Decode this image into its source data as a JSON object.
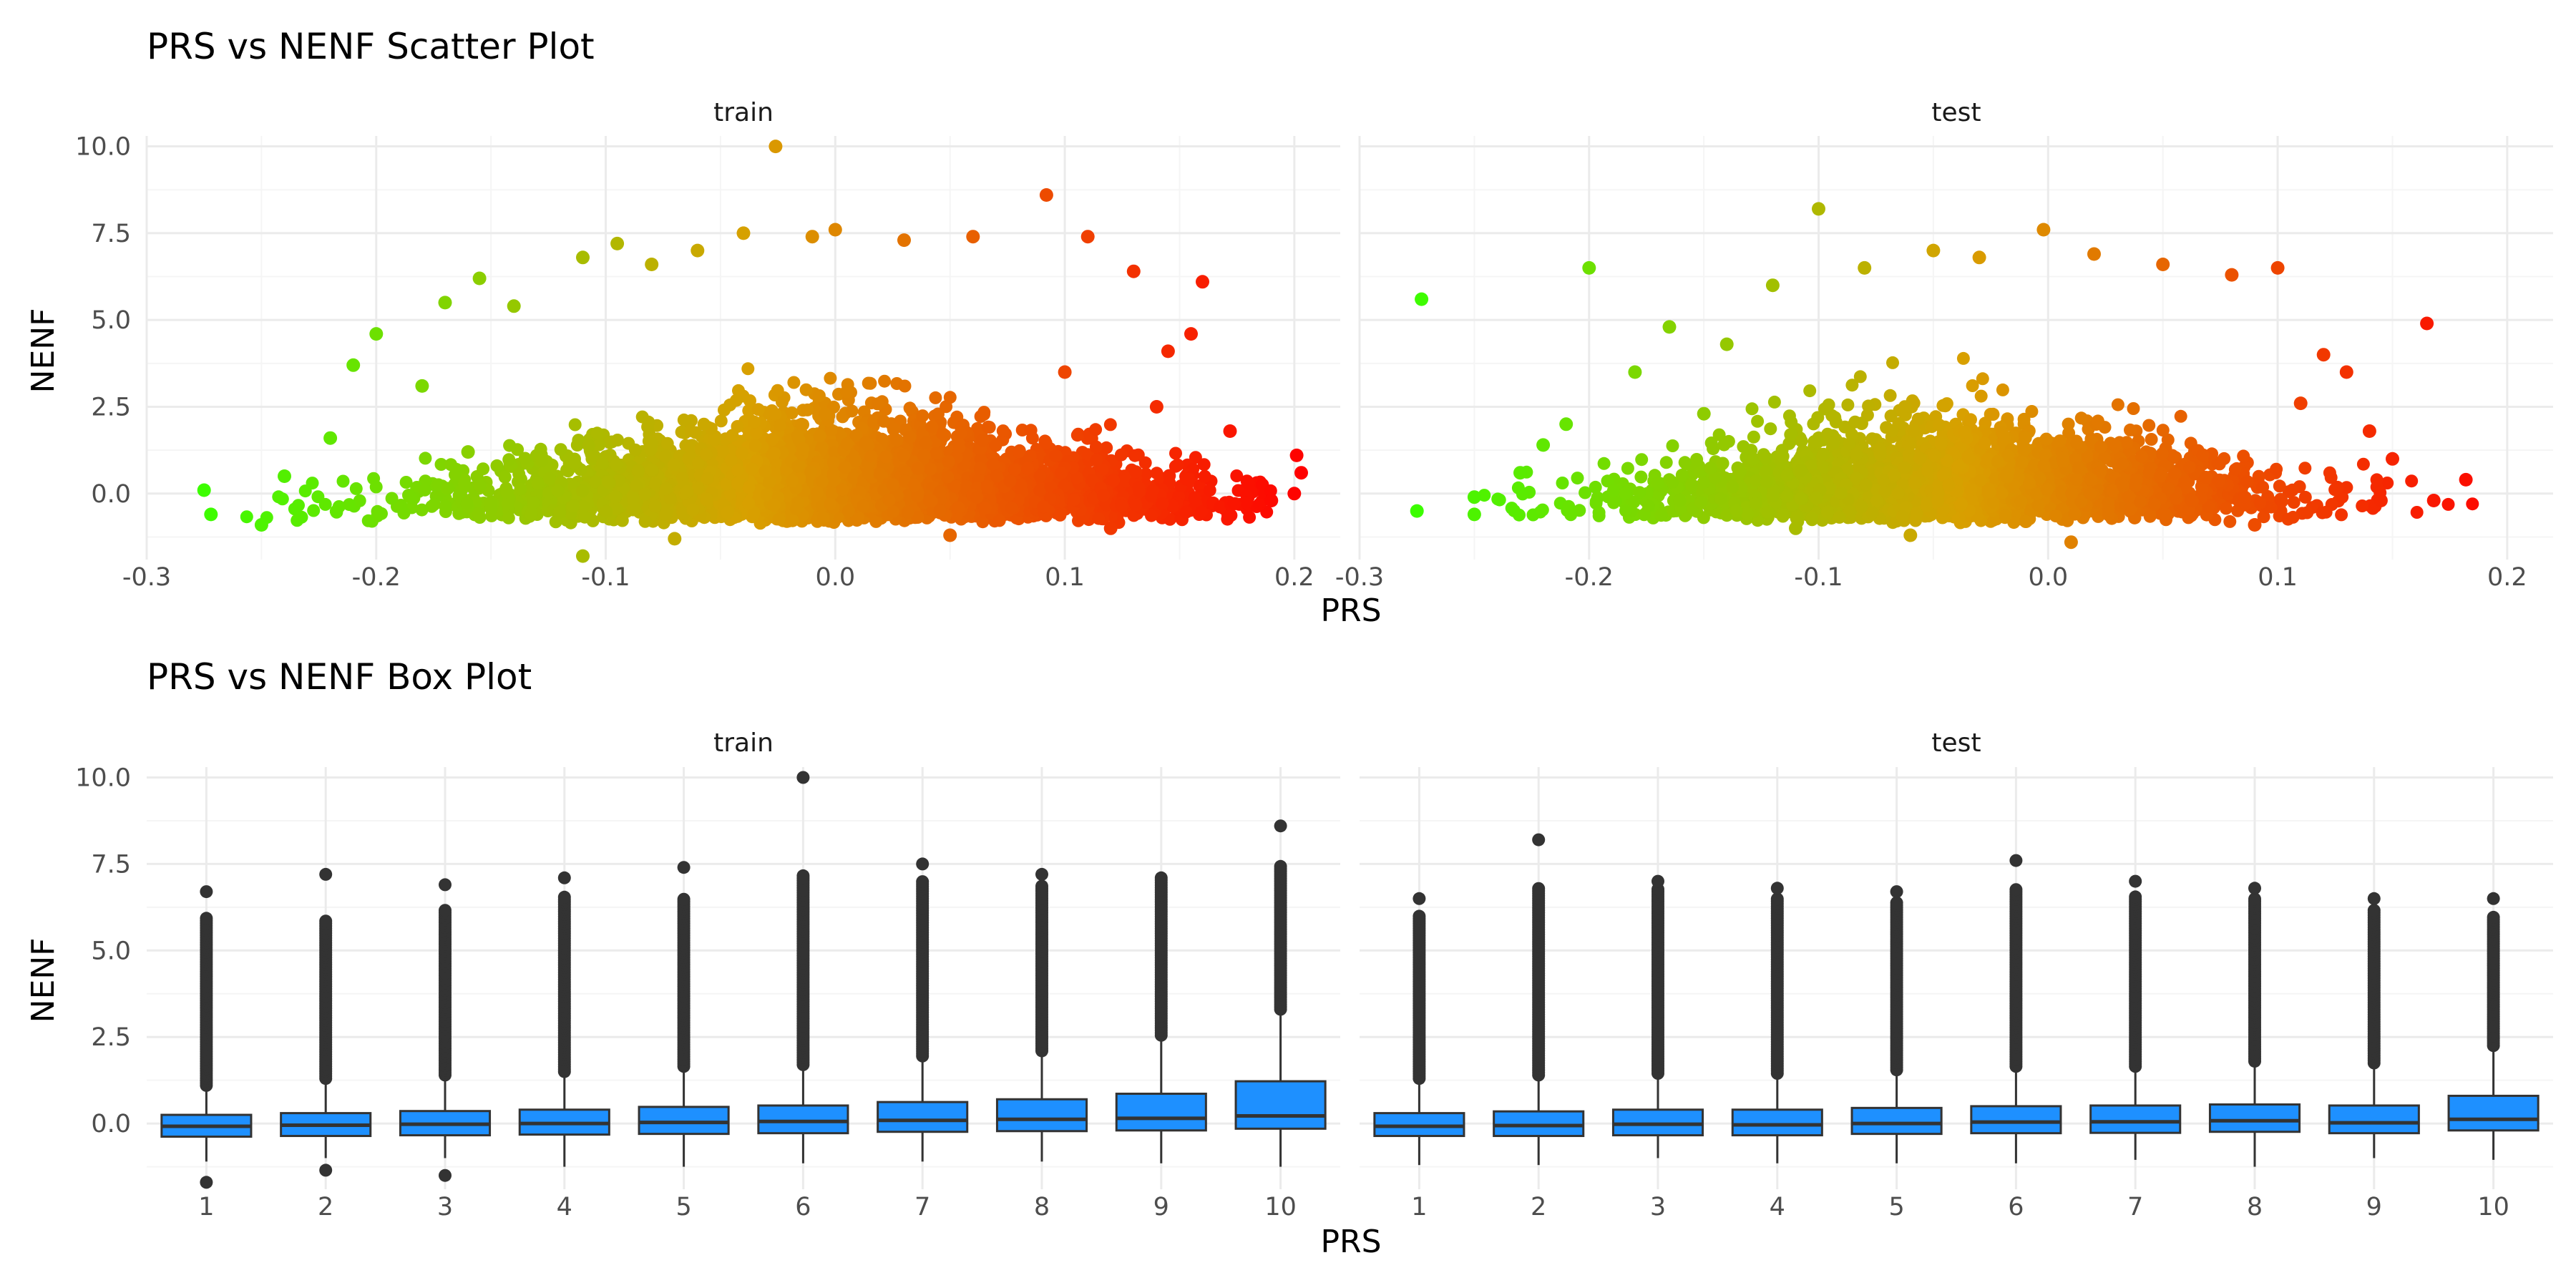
{
  "colors": {
    "panel_bg": "#ffffff",
    "grid_major": "#ebebeb",
    "grid_minor": "#f5f5f5",
    "gradient_low": "#39ff00",
    "gradient_mid": "#d8a000",
    "gradient_high": "#ff0000",
    "box_fill": "#1e90ff",
    "box_line": "#333333",
    "outlier": "#333333"
  },
  "chart_data": [
    {
      "type": "scatter",
      "title": "PRS vs NENF Scatter Plot",
      "xlabel": "PRS",
      "ylabel": "NENF",
      "facets": [
        "train",
        "test"
      ],
      "xlim": [
        -0.3,
        0.22
      ],
      "ylim": [
        -1.9,
        10.3
      ],
      "xticks": [
        -0.3,
        -0.2,
        -0.1,
        0.0,
        0.1,
        0.2
      ],
      "xtick_labels": [
        "-0.3",
        "-0.2",
        "-0.1",
        "0.0",
        "0.1",
        "0.2"
      ],
      "yticks": [
        0,
        2.5,
        5,
        7.5,
        10
      ],
      "ytick_labels": [
        "0.0",
        "2.5",
        "5.0",
        "7.5",
        "10.0"
      ],
      "grid": true,
      "color_scale": "gradient by PRS (green → orange → red)",
      "point_density": "dense cloud, tens of thousands of points per panel",
      "series": [
        {
          "facet": "train",
          "points": [
            [
              -0.275,
              0.1
            ],
            [
              -0.272,
              -0.6
            ],
            [
              -0.25,
              -0.9
            ],
            [
              -0.24,
              0.5
            ],
            [
              -0.22,
              1.6
            ],
            [
              -0.21,
              3.7
            ],
            [
              -0.2,
              4.6
            ],
            [
              -0.18,
              3.1
            ],
            [
              -0.17,
              5.5
            ],
            [
              -0.155,
              6.2
            ],
            [
              -0.14,
              5.4
            ],
            [
              -0.11,
              6.8
            ],
            [
              -0.095,
              7.2
            ],
            [
              -0.08,
              6.6
            ],
            [
              -0.06,
              7.0
            ],
            [
              -0.04,
              7.5
            ],
            [
              -0.026,
              10.0
            ],
            [
              -0.01,
              7.4
            ],
            [
              0.0,
              7.6
            ],
            [
              0.03,
              7.3
            ],
            [
              0.06,
              7.4
            ],
            [
              0.092,
              8.6
            ],
            [
              0.11,
              7.4
            ],
            [
              0.13,
              6.4
            ],
            [
              0.16,
              6.1
            ],
            [
              0.155,
              4.6
            ],
            [
              0.172,
              1.8
            ],
            [
              0.18,
              0.3
            ],
            [
              0.19,
              -0.2
            ],
            [
              0.2,
              0.0
            ],
            [
              0.201,
              1.1
            ],
            [
              0.203,
              0.6
            ],
            [
              -0.11,
              -1.8
            ],
            [
              -0.07,
              -1.3
            ],
            [
              0.05,
              -1.2
            ],
            [
              0.12,
              -1.0
            ],
            [
              0.14,
              2.5
            ],
            [
              -0.16,
              1.2
            ],
            [
              0.1,
              3.5
            ],
            [
              0.145,
              4.1
            ]
          ]
        },
        {
          "facet": "test",
          "points": [
            [
              -0.273,
              5.6
            ],
            [
              -0.275,
              -0.5
            ],
            [
              -0.25,
              -0.6
            ],
            [
              -0.25,
              -0.1
            ],
            [
              -0.23,
              0.6
            ],
            [
              -0.22,
              1.4
            ],
            [
              -0.2,
              6.5
            ],
            [
              -0.21,
              2.0
            ],
            [
              -0.18,
              3.5
            ],
            [
              -0.165,
              4.8
            ],
            [
              -0.14,
              4.3
            ],
            [
              -0.12,
              6.0
            ],
            [
              -0.1,
              8.2
            ],
            [
              -0.08,
              6.5
            ],
            [
              -0.05,
              7.0
            ],
            [
              -0.03,
              6.8
            ],
            [
              -0.002,
              7.6
            ],
            [
              0.02,
              6.9
            ],
            [
              0.05,
              6.6
            ],
            [
              0.08,
              6.3
            ],
            [
              0.1,
              6.5
            ],
            [
              0.12,
              4.0
            ],
            [
              0.13,
              3.5
            ],
            [
              0.14,
              1.8
            ],
            [
              0.15,
              1.0
            ],
            [
              0.165,
              4.9
            ],
            [
              0.168,
              -0.2
            ],
            [
              0.182,
              0.4
            ],
            [
              0.145,
              -0.2
            ],
            [
              -0.06,
              -1.2
            ],
            [
              0.01,
              -1.4
            ],
            [
              0.09,
              -0.9
            ],
            [
              -0.11,
              -1.0
            ],
            [
              0.11,
              2.6
            ],
            [
              -0.15,
              2.3
            ]
          ]
        }
      ]
    },
    {
      "type": "box",
      "title": "PRS vs NENF Box Plot",
      "xlabel": "PRS",
      "ylabel": "NENF",
      "facets": [
        "train",
        "test"
      ],
      "categories": [
        "1",
        "2",
        "3",
        "4",
        "5",
        "6",
        "7",
        "8",
        "9",
        "10"
      ],
      "ylim": [
        -1.9,
        10.3
      ],
      "yticks": [
        0,
        2.5,
        5,
        7.5,
        10
      ],
      "ytick_labels": [
        "0.0",
        "2.5",
        "5.0",
        "7.5",
        "10.0"
      ],
      "grid": true,
      "series": [
        {
          "facet": "train",
          "boxes": [
            {
              "q1": -0.38,
              "median": -0.08,
              "q3": 0.25,
              "lo": -1.1,
              "hi": 1.05,
              "out_lo": [
                -1.7
              ],
              "out_hi_from": 1.1,
              "out_hi_to": 6.0,
              "max_out": 6.7
            },
            {
              "q1": -0.36,
              "median": -0.05,
              "q3": 0.3,
              "lo": -1.0,
              "hi": 1.25,
              "out_lo": [
                -1.35
              ],
              "out_hi_from": 1.3,
              "out_hi_to": 5.9,
              "max_out": 7.2
            },
            {
              "q1": -0.34,
              "median": -0.02,
              "q3": 0.36,
              "lo": -1.0,
              "hi": 1.35,
              "out_lo": [
                -1.5
              ],
              "out_hi_from": 1.4,
              "out_hi_to": 6.2,
              "max_out": 6.9
            },
            {
              "q1": -0.32,
              "median": 0.0,
              "q3": 0.4,
              "lo": -1.25,
              "hi": 1.45,
              "out_lo": [],
              "out_hi_from": 1.5,
              "out_hi_to": 6.6,
              "max_out": 7.1
            },
            {
              "q1": -0.3,
              "median": 0.03,
              "q3": 0.48,
              "lo": -1.25,
              "hi": 1.6,
              "out_lo": [],
              "out_hi_from": 1.65,
              "out_hi_to": 6.5,
              "max_out": 7.4
            },
            {
              "q1": -0.28,
              "median": 0.06,
              "q3": 0.52,
              "lo": -1.15,
              "hi": 1.65,
              "out_lo": [],
              "out_hi_from": 1.7,
              "out_hi_to": 7.2,
              "max_out": 10.0
            },
            {
              "q1": -0.24,
              "median": 0.09,
              "q3": 0.62,
              "lo": -1.1,
              "hi": 1.9,
              "out_lo": [],
              "out_hi_from": 1.95,
              "out_hi_to": 7.0,
              "max_out": 7.5
            },
            {
              "q1": -0.22,
              "median": 0.12,
              "q3": 0.7,
              "lo": -1.1,
              "hi": 2.05,
              "out_lo": [],
              "out_hi_from": 2.1,
              "out_hi_to": 6.9,
              "max_out": 7.2
            },
            {
              "q1": -0.2,
              "median": 0.15,
              "q3": 0.86,
              "lo": -1.15,
              "hi": 2.5,
              "out_lo": [],
              "out_hi_from": 2.55,
              "out_hi_to": 7.1,
              "max_out": 7.1
            },
            {
              "q1": -0.15,
              "median": 0.22,
              "q3": 1.22,
              "lo": -1.25,
              "hi": 3.2,
              "out_lo": [],
              "out_hi_from": 3.3,
              "out_hi_to": 7.5,
              "max_out": 8.6
            }
          ]
        },
        {
          "facet": "test",
          "boxes": [
            {
              "q1": -0.36,
              "median": -0.08,
              "q3": 0.3,
              "lo": -1.2,
              "hi": 1.25,
              "out_lo": [],
              "out_hi_from": 1.3,
              "out_hi_to": 6.0,
              "max_out": 6.5
            },
            {
              "q1": -0.36,
              "median": -0.06,
              "q3": 0.35,
              "lo": -1.2,
              "hi": 1.35,
              "out_lo": [],
              "out_hi_from": 1.4,
              "out_hi_to": 6.8,
              "max_out": 8.2
            },
            {
              "q1": -0.34,
              "median": -0.02,
              "q3": 0.4,
              "lo": -1.0,
              "hi": 1.4,
              "out_lo": [],
              "out_hi_from": 1.45,
              "out_hi_to": 6.8,
              "max_out": 7.0
            },
            {
              "q1": -0.34,
              "median": -0.04,
              "q3": 0.4,
              "lo": -1.15,
              "hi": 1.4,
              "out_lo": [],
              "out_hi_from": 1.45,
              "out_hi_to": 6.5,
              "max_out": 6.8
            },
            {
              "q1": -0.3,
              "median": 0.0,
              "q3": 0.45,
              "lo": -1.15,
              "hi": 1.5,
              "out_lo": [],
              "out_hi_from": 1.55,
              "out_hi_to": 6.4,
              "max_out": 6.7
            },
            {
              "q1": -0.28,
              "median": 0.04,
              "q3": 0.5,
              "lo": -1.15,
              "hi": 1.6,
              "out_lo": [],
              "out_hi_from": 1.65,
              "out_hi_to": 6.8,
              "max_out": 7.6
            },
            {
              "q1": -0.27,
              "median": 0.05,
              "q3": 0.52,
              "lo": -1.05,
              "hi": 1.6,
              "out_lo": [],
              "out_hi_from": 1.65,
              "out_hi_to": 6.6,
              "max_out": 7.0
            },
            {
              "q1": -0.24,
              "median": 0.08,
              "q3": 0.55,
              "lo": -1.25,
              "hi": 1.75,
              "out_lo": [],
              "out_hi_from": 1.8,
              "out_hi_to": 6.5,
              "max_out": 6.8
            },
            {
              "q1": -0.28,
              "median": 0.02,
              "q3": 0.52,
              "lo": -1.0,
              "hi": 1.7,
              "out_lo": [],
              "out_hi_from": 1.75,
              "out_hi_to": 6.2,
              "max_out": 6.5
            },
            {
              "q1": -0.2,
              "median": 0.12,
              "q3": 0.8,
              "lo": -1.05,
              "hi": 2.2,
              "out_lo": [],
              "out_hi_from": 2.25,
              "out_hi_to": 6.0,
              "max_out": 6.5
            }
          ]
        }
      ]
    }
  ]
}
